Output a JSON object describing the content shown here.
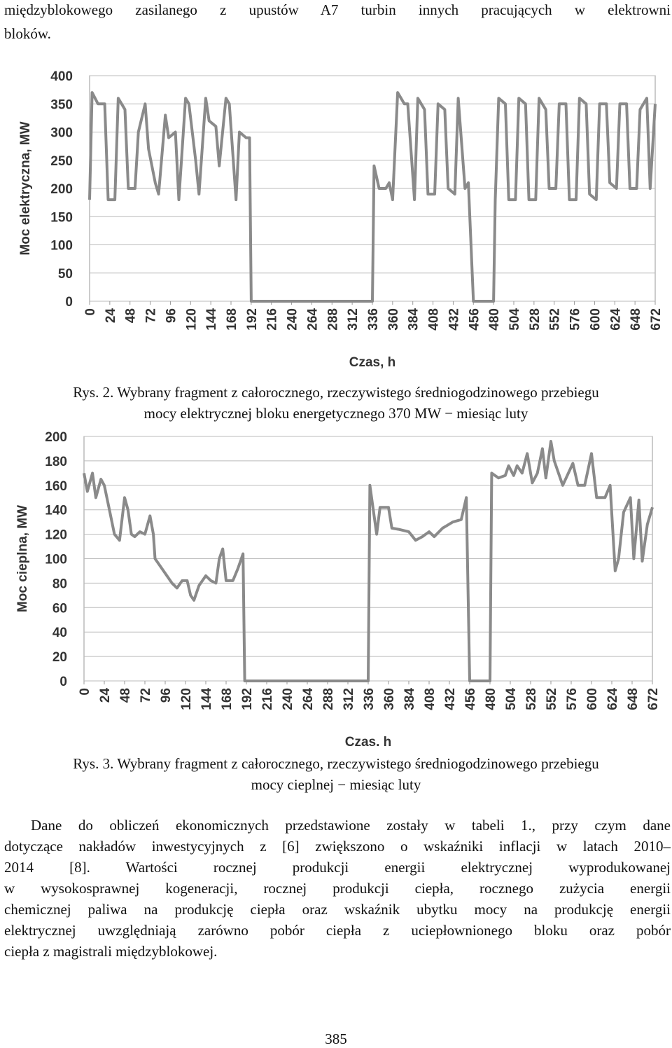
{
  "top_text": [
    "międzyblokowego zasilanego z upustów A7 turbin innych pracujących w elektrowni",
    "bloków."
  ],
  "chart_data": [
    {
      "type": "line",
      "y_label": "Moc elektryczna, MW",
      "x_label": "Czas, h",
      "color": "#8a8a8a",
      "grid": true,
      "xlim": [
        0,
        672
      ],
      "ylim": [
        0,
        400
      ],
      "xticks": [
        0,
        24,
        48,
        72,
        96,
        120,
        144,
        168,
        192,
        216,
        240,
        264,
        288,
        312,
        336,
        360,
        384,
        408,
        432,
        456,
        480,
        504,
        528,
        552,
        576,
        600,
        624,
        648,
        672
      ],
      "yticks": [
        0,
        50,
        100,
        150,
        200,
        250,
        300,
        350,
        400
      ],
      "x": [
        0,
        3,
        10,
        18,
        22,
        30,
        34,
        42,
        46,
        54,
        58,
        66,
        70,
        78,
        82,
        90,
        94,
        102,
        106,
        114,
        118,
        126,
        130,
        138,
        142,
        150,
        154,
        162,
        166,
        174,
        178,
        186,
        190,
        192,
        336,
        338,
        344,
        352,
        356,
        360,
        366,
        374,
        378,
        386,
        390,
        398,
        402,
        410,
        414,
        422,
        426,
        434,
        438,
        446,
        450,
        456,
        480,
        482,
        486,
        494,
        498,
        506,
        510,
        518,
        522,
        530,
        534,
        542,
        546,
        554,
        558,
        566,
        570,
        578,
        582,
        590,
        594,
        602,
        606,
        614,
        618,
        626,
        630,
        638,
        642,
        650,
        654,
        662,
        666,
        672
      ],
      "values": [
        180,
        370,
        350,
        350,
        180,
        180,
        360,
        340,
        200,
        200,
        300,
        350,
        270,
        210,
        190,
        330,
        290,
        300,
        180,
        360,
        350,
        250,
        190,
        360,
        320,
        310,
        240,
        360,
        350,
        180,
        300,
        290,
        290,
        0,
        0,
        240,
        200,
        200,
        210,
        180,
        370,
        350,
        350,
        180,
        360,
        340,
        190,
        190,
        350,
        340,
        200,
        190,
        360,
        200,
        210,
        0,
        0,
        180,
        360,
        350,
        180,
        180,
        360,
        350,
        180,
        180,
        360,
        340,
        200,
        200,
        350,
        350,
        180,
        180,
        360,
        350,
        190,
        180,
        350,
        350,
        210,
        200,
        350,
        350,
        200,
        200,
        340,
        360,
        200,
        350
      ]
    },
    {
      "type": "line",
      "y_label": "Moc cieplna, MW",
      "x_label": "Czas, h",
      "color": "#8a8a8a",
      "grid": true,
      "xlim": [
        0,
        672
      ],
      "ylim": [
        0,
        200
      ],
      "xticks": [
        0,
        24,
        48,
        72,
        96,
        120,
        144,
        168,
        192,
        216,
        240,
        264,
        288,
        312,
        336,
        360,
        384,
        408,
        432,
        456,
        480,
        504,
        528,
        552,
        576,
        600,
        624,
        648,
        672
      ],
      "yticks": [
        0,
        20,
        40,
        60,
        80,
        100,
        120,
        140,
        160,
        180,
        200
      ],
      "x": [
        0,
        4,
        10,
        14,
        20,
        24,
        30,
        36,
        42,
        48,
        52,
        56,
        60,
        66,
        72,
        78,
        82,
        84,
        96,
        104,
        110,
        116,
        122,
        126,
        130,
        136,
        144,
        150,
        156,
        160,
        164,
        168,
        176,
        182,
        188,
        190,
        336,
        338,
        346,
        350,
        360,
        364,
        372,
        384,
        392,
        400,
        408,
        414,
        424,
        436,
        446,
        452,
        456,
        480,
        482,
        490,
        498,
        502,
        508,
        512,
        518,
        524,
        530,
        536,
        542,
        546,
        552,
        556,
        566,
        578,
        584,
        592,
        600,
        606,
        616,
        622,
        628,
        632,
        638,
        646,
        650,
        656,
        660,
        666,
        672
      ],
      "values": [
        170,
        155,
        170,
        150,
        165,
        160,
        140,
        120,
        115,
        150,
        140,
        120,
        118,
        122,
        120,
        135,
        120,
        100,
        88,
        80,
        76,
        82,
        82,
        70,
        66,
        78,
        86,
        82,
        80,
        100,
        108,
        82,
        82,
        92,
        104,
        0,
        0,
        160,
        120,
        142,
        142,
        125,
        124,
        122,
        115,
        118,
        122,
        118,
        125,
        130,
        132,
        150,
        0,
        0,
        170,
        166,
        168,
        176,
        168,
        176,
        170,
        186,
        162,
        170,
        190,
        166,
        196,
        180,
        160,
        178,
        160,
        160,
        186,
        150,
        150,
        160,
        90,
        100,
        138,
        150,
        100,
        148,
        98,
        128,
        142
      ]
    }
  ],
  "captions": [
    [
      "Rys. 2. Wybrany fragment z całorocznego, rzeczywistego średniogodzinowego przebiegu",
      "mocy elektrycznej bloku energetycznego 370 MW − miesiąc luty"
    ],
    [
      "Rys. 3. Wybrany fragment z całorocznego, rzeczywistego średniogodzinowego przebiegu",
      "mocy cieplnej − miesiąc luty"
    ]
  ],
  "paragraph": [
    "Dane do obliczeń ekonomicznych przedstawione zostały w tabeli 1., przy czym dane",
    "dotyczące nakładów inwestycyjnych z [6] zwiększono o wskaźniki inflacji w latach 2010–",
    "2014 [8]. Wartości rocznej produkcji energii elektrycznej wyprodukowanej",
    "w wysokosprawnej kogeneracji, rocznej produkcji ciepła, rocznego zużycia energii",
    "chemicznej paliwa na produkcję ciepła oraz wskaźnik ubytku mocy na produkcję energii",
    "elektrycznej uwzględniają zarówno pobór ciepła z uciepłownionego bloku oraz pobór",
    "ciepła z magistrali międzyblokowej."
  ],
  "page_number": "385"
}
